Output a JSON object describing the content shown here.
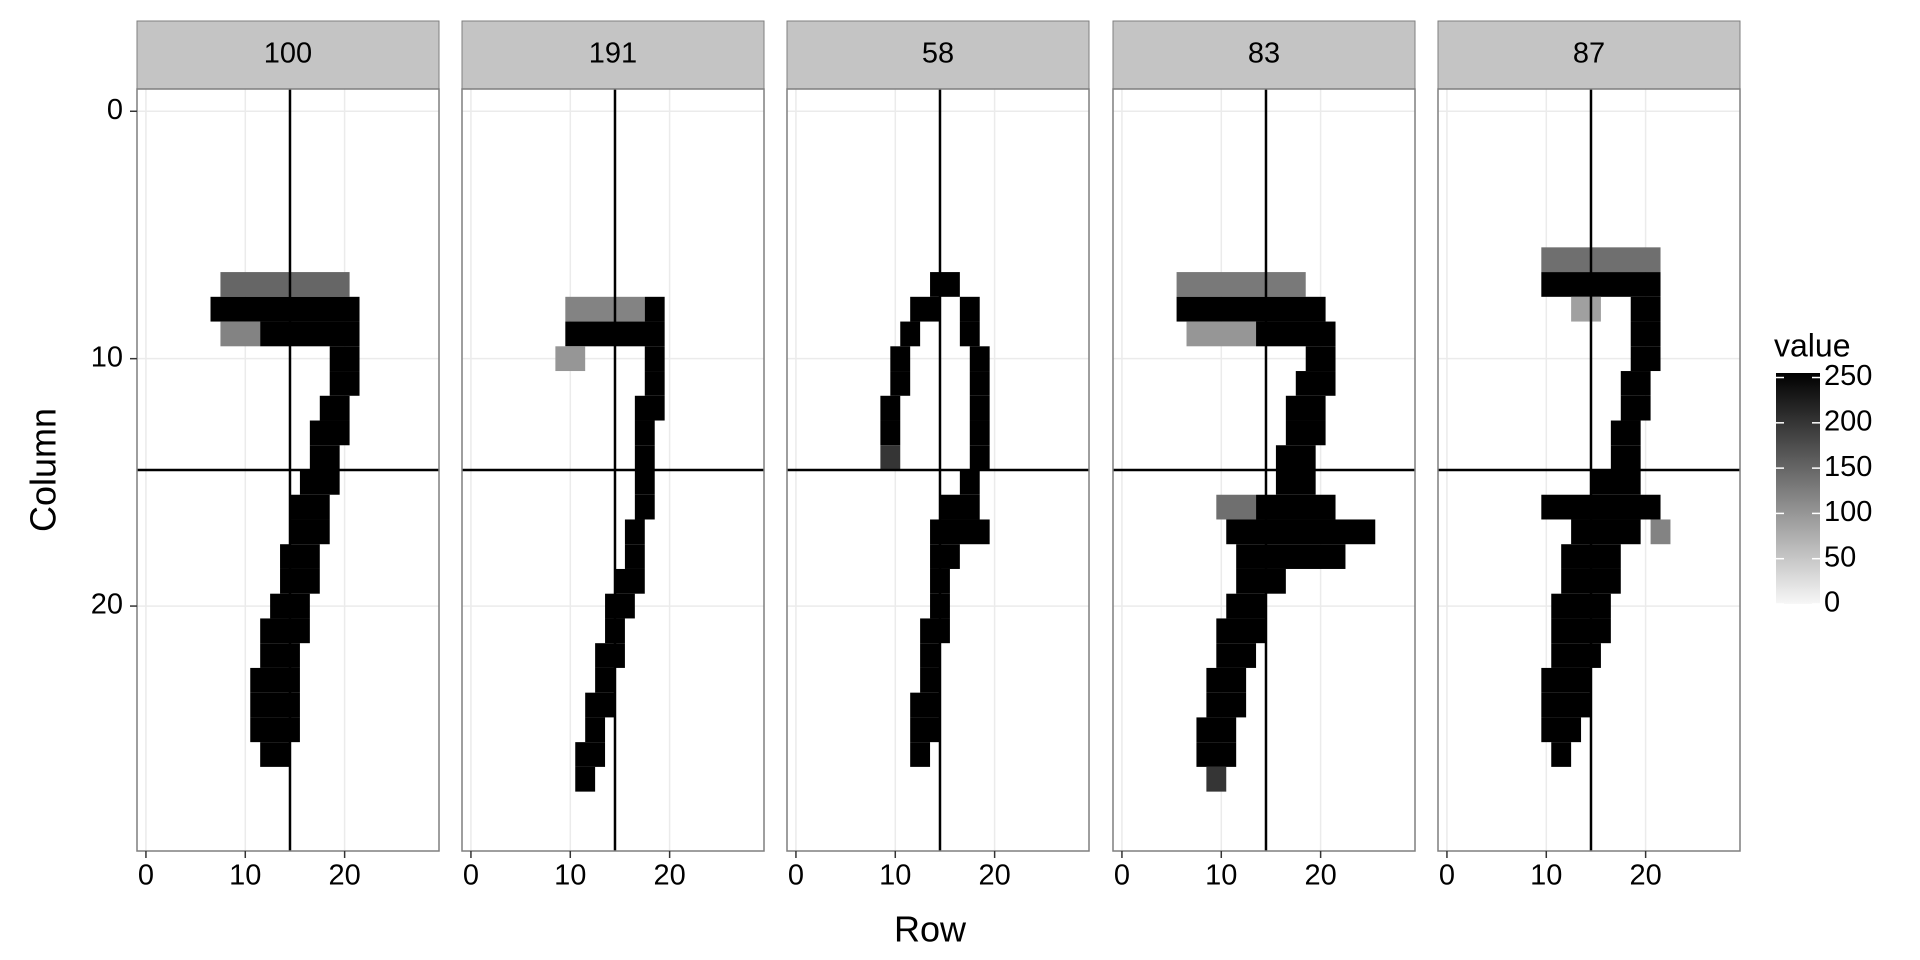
{
  "chart_data": {
    "type": "heatmap",
    "xlabel": "Row",
    "ylabel": "Column",
    "xlim": [
      -0.9,
      29.5
    ],
    "ylim": [
      -0.9,
      29.9
    ],
    "xticks": [
      0,
      10,
      20
    ],
    "yticks": [
      0,
      10,
      20
    ],
    "vline": 14.5,
    "hline": 14.5,
    "grid": true,
    "colors": [
      "#f7f7f7",
      "#000000"
    ],
    "legend": {
      "title": "value",
      "lim": [
        0,
        255
      ],
      "ticks": [
        0,
        50,
        100,
        150,
        200,
        250
      ]
    },
    "facets": [
      {
        "label": "100",
        "runs": [
          [
            7,
            8,
            20,
            150
          ],
          [
            8,
            7,
            21,
            255
          ],
          [
            9,
            8,
            11,
            120
          ],
          [
            9,
            12,
            21,
            255
          ],
          [
            10,
            19,
            21,
            255
          ],
          [
            11,
            19,
            21,
            255
          ],
          [
            12,
            18,
            20,
            255
          ],
          [
            13,
            17,
            20,
            255
          ],
          [
            14,
            17,
            19,
            255
          ],
          [
            15,
            16,
            19,
            255
          ],
          [
            16,
            15,
            18,
            255
          ],
          [
            17,
            15,
            18,
            255
          ],
          [
            18,
            14,
            17,
            255
          ],
          [
            19,
            14,
            17,
            255
          ],
          [
            20,
            13,
            16,
            255
          ],
          [
            21,
            12,
            16,
            255
          ],
          [
            22,
            12,
            15,
            255
          ],
          [
            23,
            11,
            15,
            255
          ],
          [
            24,
            11,
            15,
            255
          ],
          [
            25,
            11,
            15,
            255
          ],
          [
            26,
            12,
            14,
            255
          ]
        ]
      },
      {
        "label": "191",
        "runs": [
          [
            8,
            10,
            17,
            120
          ],
          [
            8,
            18,
            19,
            255
          ],
          [
            9,
            10,
            19,
            255
          ],
          [
            10,
            9,
            11,
            100
          ],
          [
            10,
            18,
            19,
            255
          ],
          [
            11,
            18,
            19,
            255
          ],
          [
            12,
            17,
            19,
            255
          ],
          [
            13,
            17,
            18,
            255
          ],
          [
            14,
            17,
            18,
            255
          ],
          [
            15,
            17,
            18,
            255
          ],
          [
            16,
            17,
            18,
            255
          ],
          [
            17,
            16,
            17,
            255
          ],
          [
            18,
            16,
            17,
            255
          ],
          [
            19,
            15,
            17,
            255
          ],
          [
            20,
            14,
            16,
            255
          ],
          [
            21,
            14,
            15,
            255
          ],
          [
            22,
            13,
            15,
            255
          ],
          [
            23,
            13,
            14,
            255
          ],
          [
            24,
            12,
            14,
            255
          ],
          [
            25,
            12,
            13,
            255
          ],
          [
            26,
            11,
            13,
            255
          ],
          [
            27,
            11,
            12,
            255
          ]
        ]
      },
      {
        "label": "58",
        "runs": [
          [
            7,
            14,
            16,
            255
          ],
          [
            8,
            12,
            14,
            255
          ],
          [
            8,
            17,
            18,
            255
          ],
          [
            9,
            11,
            12,
            255
          ],
          [
            9,
            17,
            18,
            255
          ],
          [
            10,
            10,
            11,
            255
          ],
          [
            10,
            18,
            19,
            255
          ],
          [
            11,
            10,
            11,
            255
          ],
          [
            11,
            18,
            19,
            255
          ],
          [
            12,
            9,
            10,
            255
          ],
          [
            12,
            18,
            19,
            255
          ],
          [
            13,
            9,
            10,
            255
          ],
          [
            13,
            18,
            19,
            255
          ],
          [
            14,
            9,
            10,
            200
          ],
          [
            14,
            18,
            19,
            255
          ],
          [
            15,
            17,
            18,
            255
          ],
          [
            16,
            15,
            18,
            255
          ],
          [
            17,
            14,
            19,
            255
          ],
          [
            18,
            14,
            16,
            255
          ],
          [
            19,
            14,
            15,
            255
          ],
          [
            20,
            14,
            15,
            255
          ],
          [
            21,
            13,
            15,
            255
          ],
          [
            22,
            13,
            14,
            255
          ],
          [
            23,
            13,
            14,
            255
          ],
          [
            24,
            12,
            14,
            255
          ],
          [
            25,
            12,
            14,
            255
          ],
          [
            26,
            12,
            13,
            255
          ]
        ]
      },
      {
        "label": "83",
        "runs": [
          [
            7,
            6,
            18,
            130
          ],
          [
            8,
            6,
            20,
            255
          ],
          [
            9,
            7,
            13,
            100
          ],
          [
            9,
            14,
            21,
            255
          ],
          [
            10,
            19,
            21,
            255
          ],
          [
            11,
            18,
            21,
            255
          ],
          [
            12,
            17,
            20,
            255
          ],
          [
            13,
            17,
            20,
            255
          ],
          [
            14,
            16,
            19,
            255
          ],
          [
            15,
            16,
            19,
            255
          ],
          [
            16,
            10,
            13,
            140
          ],
          [
            16,
            14,
            21,
            255
          ],
          [
            17,
            11,
            25,
            255
          ],
          [
            18,
            12,
            22,
            255
          ],
          [
            19,
            12,
            16,
            255
          ],
          [
            20,
            11,
            14,
            255
          ],
          [
            21,
            10,
            14,
            255
          ],
          [
            22,
            10,
            13,
            255
          ],
          [
            23,
            9,
            12,
            255
          ],
          [
            24,
            9,
            12,
            255
          ],
          [
            25,
            8,
            11,
            255
          ],
          [
            26,
            8,
            11,
            255
          ],
          [
            27,
            9,
            10,
            200
          ]
        ]
      },
      {
        "label": "87",
        "runs": [
          [
            6,
            10,
            21,
            140
          ],
          [
            7,
            10,
            21,
            255
          ],
          [
            8,
            13,
            15,
            90
          ],
          [
            8,
            19,
            21,
            255
          ],
          [
            9,
            19,
            21,
            255
          ],
          [
            10,
            19,
            21,
            255
          ],
          [
            11,
            18,
            20,
            255
          ],
          [
            12,
            18,
            20,
            255
          ],
          [
            13,
            17,
            19,
            255
          ],
          [
            14,
            17,
            19,
            255
          ],
          [
            15,
            15,
            19,
            255
          ],
          [
            16,
            10,
            21,
            255
          ],
          [
            17,
            13,
            19,
            255
          ],
          [
            17,
            21,
            22,
            120
          ],
          [
            18,
            12,
            17,
            255
          ],
          [
            19,
            12,
            17,
            255
          ],
          [
            20,
            11,
            16,
            255
          ],
          [
            21,
            11,
            16,
            255
          ],
          [
            22,
            11,
            15,
            255
          ],
          [
            23,
            10,
            14,
            255
          ],
          [
            24,
            10,
            14,
            255
          ],
          [
            25,
            10,
            13,
            255
          ],
          [
            26,
            11,
            12,
            255
          ]
        ]
      }
    ]
  }
}
